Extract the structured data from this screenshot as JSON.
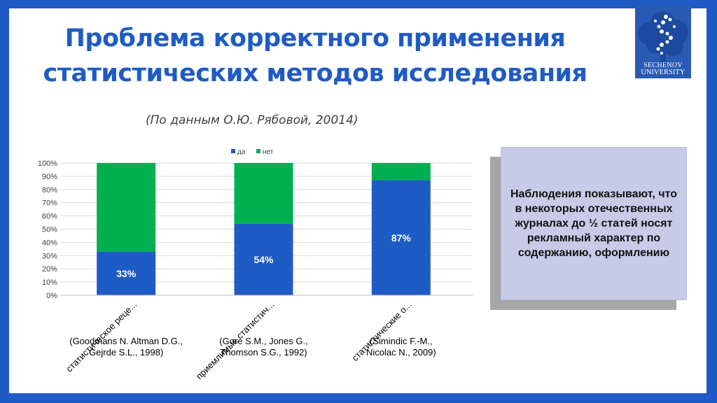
{
  "slide": {
    "title_line1": "Проблема корректного применения",
    "title_line2": "статистических методов исследования",
    "subtitle": "(По данным О.Ю. Рябовой, 20014)",
    "logo_line1": "Sechenov",
    "logo_line2": "University",
    "note": "Наблюдения показывают, что в некоторых отечественных журналах до ½ статей носят рекламный характер по содержанию, оформлению"
  },
  "colors": {
    "brand": "#1f5bc4",
    "da": "#1f5bc4",
    "net": "#00b050",
    "note_bg": "#c8cae8"
  },
  "chart_data": {
    "type": "bar",
    "stacked": true,
    "categories": [
      "статистическое реце...",
      "приемлимые статистич...",
      "статистические о..."
    ],
    "category_refs": [
      [
        "(Goodmans N. Altman  D.G.,",
        "Gejrde S.L., 1998)"
      ],
      [
        "(Gore S.M., Jones G.,",
        "Thomson S.G., 1992)"
      ],
      [
        "(Simindic F.-M.,",
        "Nicolac N., 2009)"
      ]
    ],
    "series": [
      {
        "name": "да",
        "values": [
          33,
          54,
          87
        ]
      },
      {
        "name": "нет",
        "values": [
          67,
          46,
          13
        ]
      }
    ],
    "data_labels": [
      "33%",
      "54%",
      "87%"
    ],
    "yticks": [
      "0%",
      "10%",
      "20%",
      "30%",
      "40%",
      "50%",
      "60%",
      "70%",
      "80%",
      "90%",
      "100%"
    ],
    "ylim": [
      0,
      100
    ],
    "legend": "top",
    "grid": true
  }
}
